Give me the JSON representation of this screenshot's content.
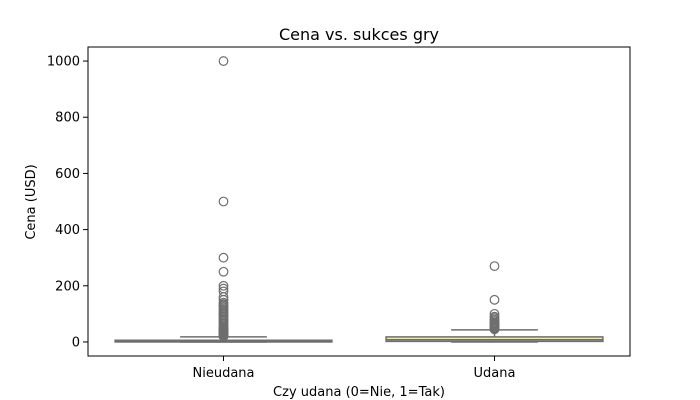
{
  "chart_data": {
    "type": "box",
    "title": "Cena vs. sukces gry",
    "xlabel": "Czy udana (0=Nie, 1=Tak)",
    "ylabel": "Cena (USD)",
    "ylim": [
      -50,
      1050
    ],
    "yticks": [
      0,
      200,
      400,
      600,
      800,
      1000
    ],
    "grid": false,
    "categories": [
      "Nieudana",
      "Udana"
    ],
    "boxes": [
      {
        "category": "Nieudana",
        "color": "#e0c6c6",
        "q1": 0,
        "median": 2,
        "q3": 6,
        "whisker_low": 0,
        "whisker_high": 18,
        "outliers": [
          20,
          22,
          24,
          26,
          28,
          30,
          32,
          34,
          36,
          38,
          40,
          42,
          45,
          48,
          50,
          55,
          60,
          65,
          70,
          75,
          80,
          85,
          90,
          95,
          100,
          105,
          110,
          115,
          120,
          125,
          130,
          135,
          140,
          150,
          160,
          180,
          190,
          200,
          250,
          300,
          500,
          1000
        ]
      },
      {
        "category": "Udana",
        "color": "#ecec9c",
        "q1": 2,
        "median": 8,
        "q3": 18,
        "whisker_low": 0,
        "whisker_high": 43,
        "outliers": [
          45,
          48,
          50,
          52,
          55,
          58,
          60,
          63,
          65,
          68,
          70,
          75,
          80,
          85,
          90,
          100,
          150,
          270
        ]
      }
    ]
  }
}
